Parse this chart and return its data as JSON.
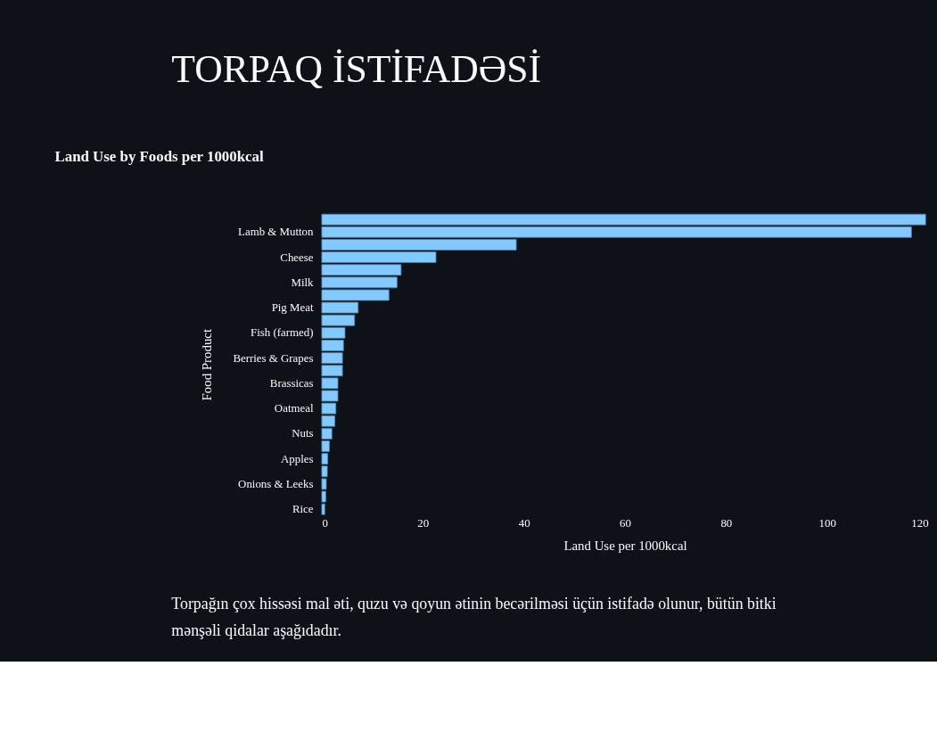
{
  "chart_data": {
    "type": "bar",
    "orientation": "horizontal",
    "title": "Land Use by Foods per 1000kcal",
    "xlabel": "Land Use per 1000kcal",
    "ylabel": "Food Product",
    "categories": [
      null,
      "Lamb & Mutton",
      null,
      "Cheese",
      null,
      "Milk",
      null,
      "Pig Meat",
      null,
      "Fish (farmed)",
      null,
      "Berries & Grapes",
      null,
      "Brassicas",
      null,
      "Oatmeal",
      null,
      "Nuts",
      null,
      "Apples",
      null,
      "Onions & Leeks",
      null,
      "Rice"
    ],
    "values": [
      119.5,
      116.7,
      38.5,
      22.6,
      15.7,
      14.9,
      13.3,
      7.2,
      6.5,
      4.6,
      4.3,
      4.1,
      4.1,
      3.2,
      3.2,
      2.8,
      2.6,
      2.0,
      1.5,
      1.2,
      1.1,
      0.9,
      0.8,
      0.6
    ],
    "color": "#83c9ff",
    "xlim": [
      0,
      120
    ],
    "xticks": [
      0,
      20,
      40,
      60,
      80,
      100,
      120
    ],
    "grid": false,
    "annotations": [
      "TORPAQ İSTİFADƏSİ",
      "Torpağın çox hissəsi mal əti, quzu və qoyun ətinin becərilməsi üçün istifadə olunur, bütün bitki mənşəli qidalar aşağıdadır."
    ]
  }
}
